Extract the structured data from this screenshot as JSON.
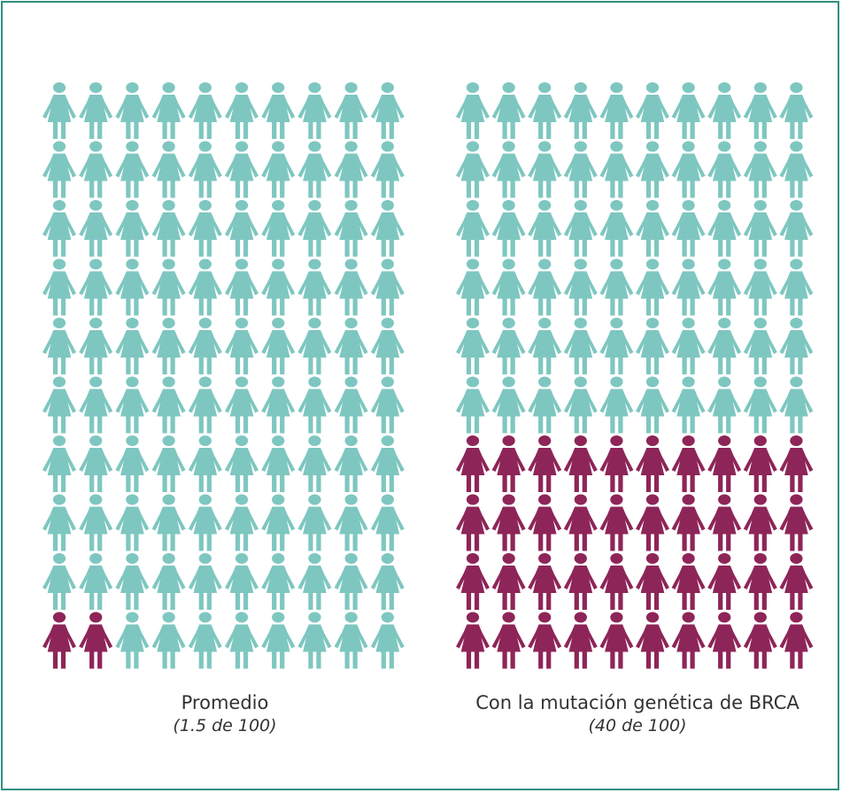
{
  "colors": {
    "unaffected": "#7ec7c0",
    "affected": "#8e2558",
    "frame": "#2f8f7f"
  },
  "icon": "woman-icon",
  "chart_data": [
    {
      "type": "pictogram",
      "total": 100,
      "rows": 10,
      "columns": 10,
      "affected": 2,
      "rate_per_100": 1.5,
      "title": "Promedio",
      "subtitle": "(1.5 de 100)"
    },
    {
      "type": "pictogram",
      "total": 100,
      "rows": 10,
      "columns": 10,
      "affected": 40,
      "rate_per_100": 40,
      "title": "Con la mutación genética de BRCA",
      "subtitle": "(40 de 100)"
    }
  ]
}
